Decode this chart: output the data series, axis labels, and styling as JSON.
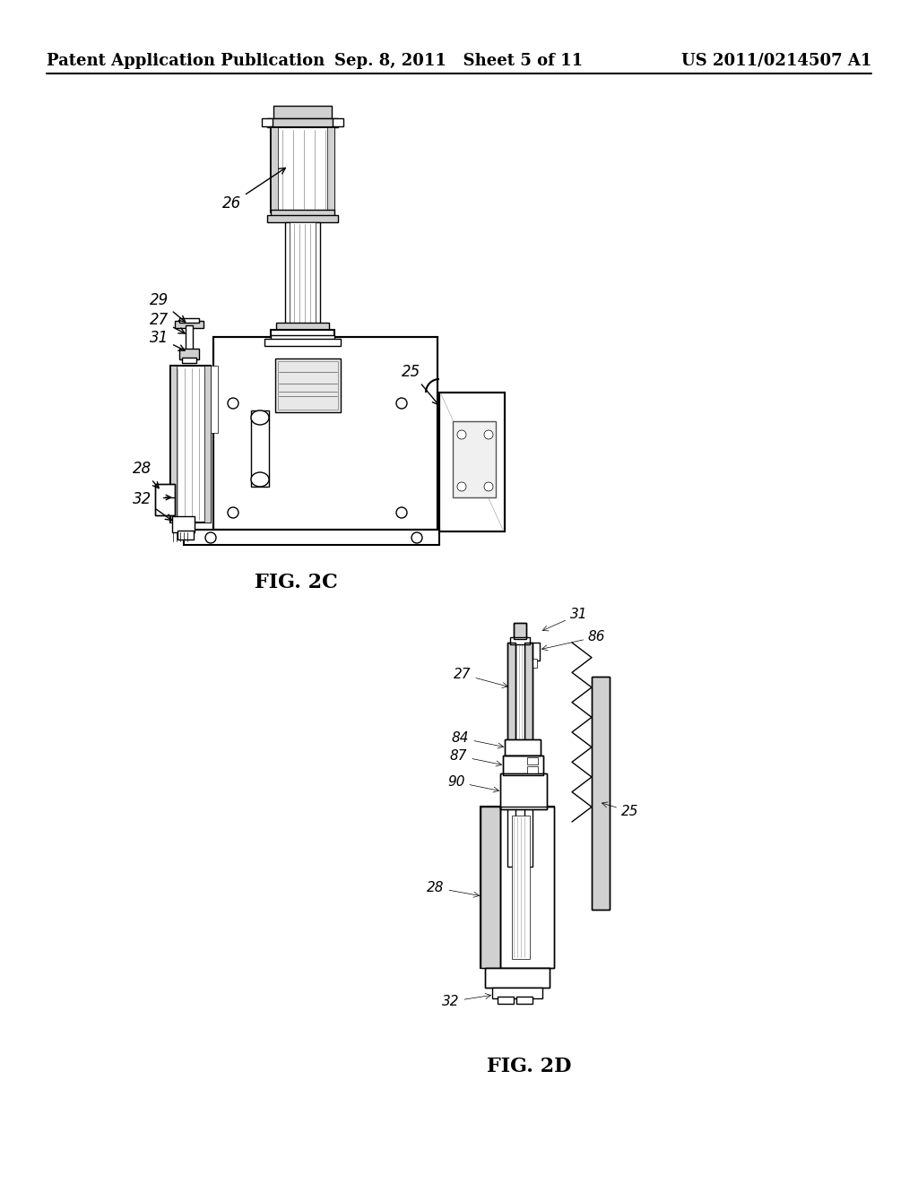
{
  "background_color": "#ffffff",
  "header_left": "Patent Application Publication",
  "header_center": "Sep. 8, 2011   Sheet 5 of 11",
  "header_right": "US 2011/0214507 A1",
  "header_fontsize": 13,
  "fig2c_label": "FIG. 2C",
  "fig2d_label": "FIG. 2D",
  "label_fontsize": 16,
  "annot_fontsize": 12,
  "black": "#000000",
  "gray_light": "#d0d0d0",
  "gray_med": "#aaaaaa",
  "white": "#ffffff"
}
